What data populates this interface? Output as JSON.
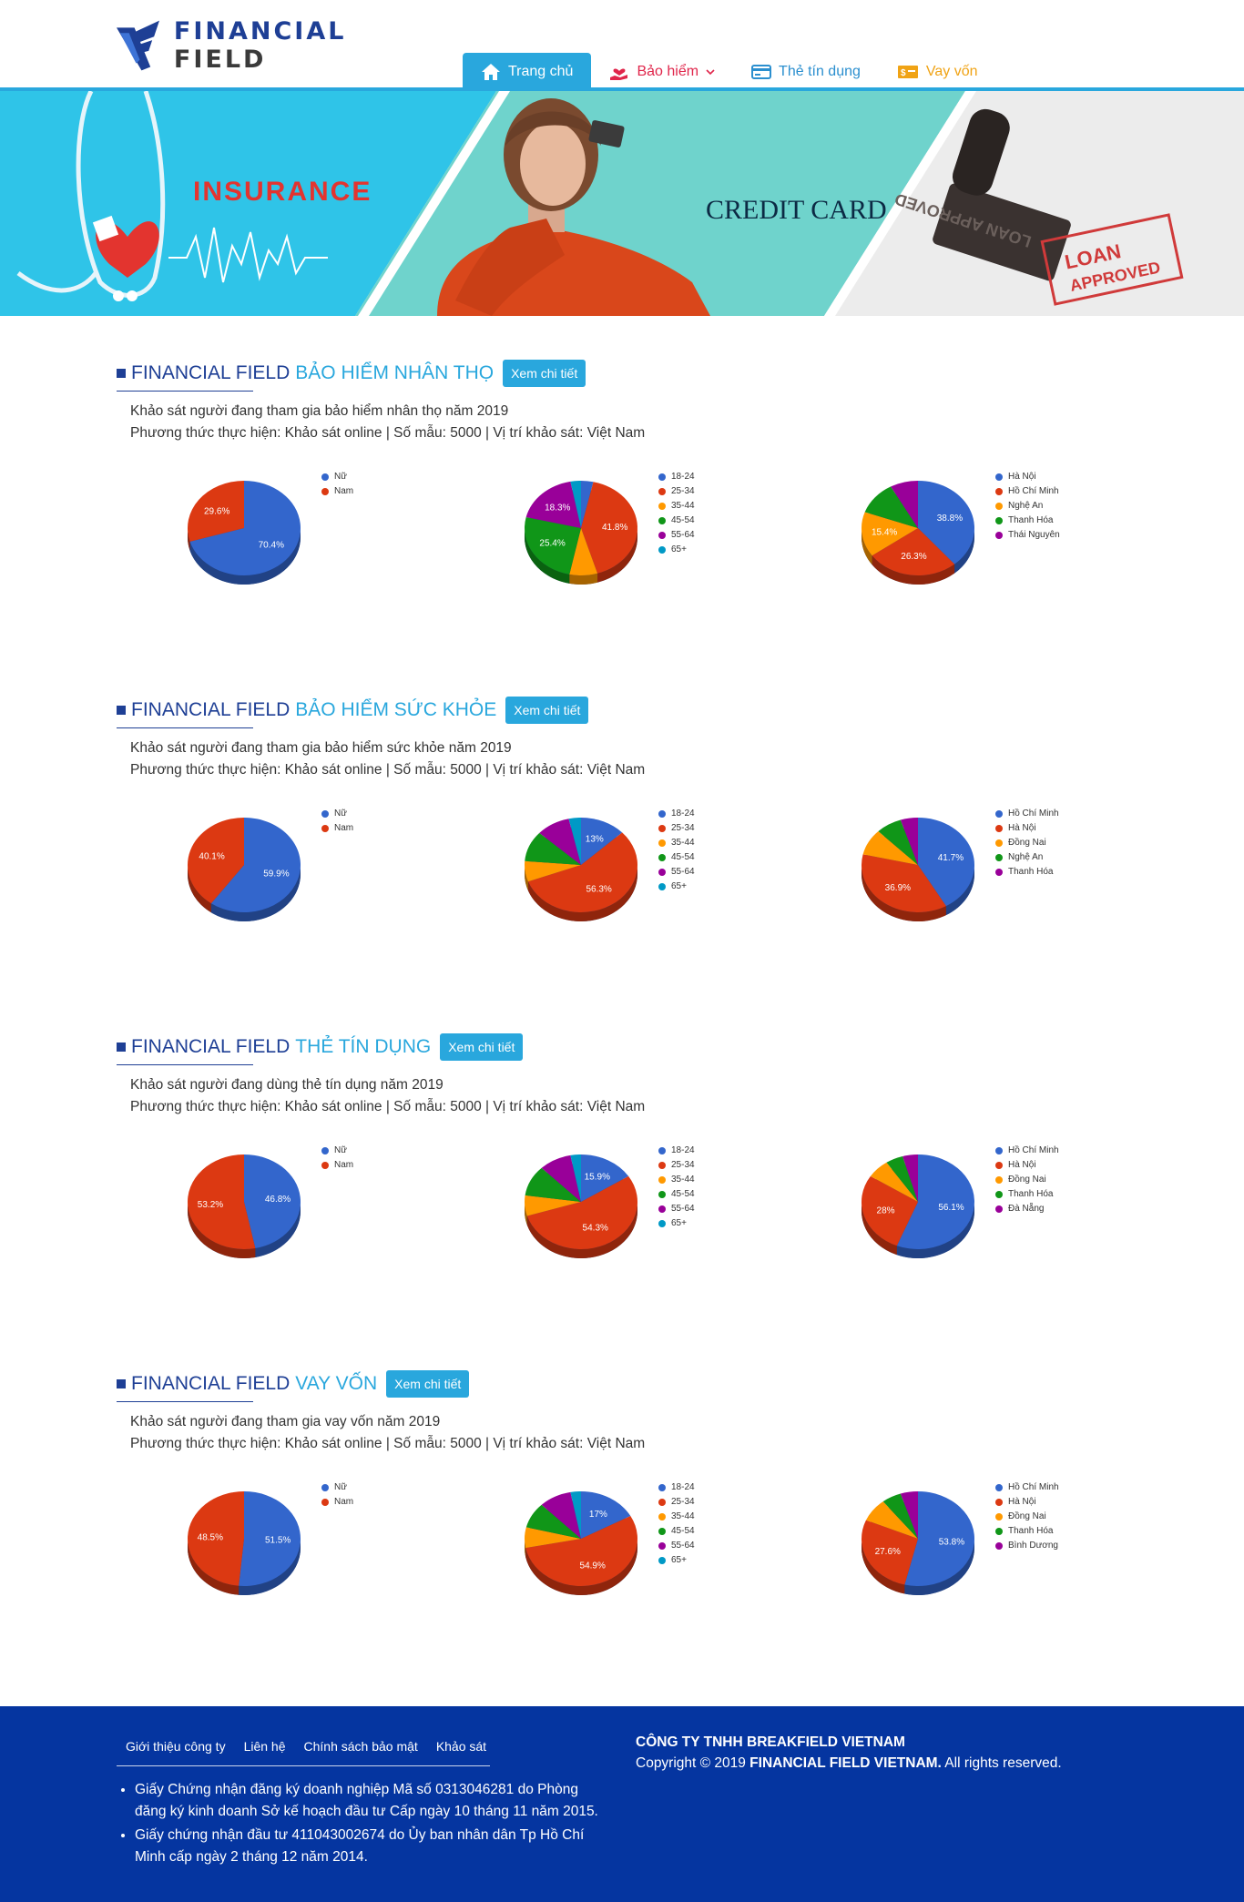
{
  "header": {
    "logo_word1": "FINANCIAL",
    "logo_word2": "FIELD",
    "nav": [
      {
        "label": "Trang chủ",
        "icon": "home-icon"
      },
      {
        "label": "Bảo hiểm",
        "icon": "insurance-hand-heart-icon"
      },
      {
        "label": "Thẻ tín dụng",
        "icon": "credit-card-icon"
      },
      {
        "label": "Vay vốn",
        "icon": "money-bill-icon"
      }
    ]
  },
  "banner": {
    "insurance_text": "INSURANCE",
    "credit_text": "CREDIT CARD",
    "stamp_line1": "LOAN",
    "stamp_line2": "APPROVED",
    "stamp_mirror": "LOAN APPROVED"
  },
  "colors": {
    "brand_blue": "#1e3f95",
    "accent_cyan": "#29a7dd",
    "footer_bg": "#0535a0",
    "pie": [
      "#3366cc",
      "#dc3912",
      "#ff9900",
      "#109618",
      "#990099",
      "#0099c6"
    ]
  },
  "sections": [
    {
      "brand": "FINANCIAL FIELD",
      "title": "BẢO HIỂM NHÂN THỌ",
      "button": "Xem chi tiết",
      "desc1": "Khảo sát người đang tham gia bảo hiểm nhân thọ năm 2019",
      "desc2": "Phương thức thực hiện: Khảo sát online | Số mẫu: 5000 | Vị trí khảo sát: Việt Nam",
      "charts": [
        {
          "type": "pie",
          "labels": [
            "Nữ",
            "Nam"
          ],
          "values": [
            70.4,
            29.6
          ],
          "data_labels": [
            "70.4%",
            "29.6%"
          ]
        },
        {
          "type": "pie",
          "labels": [
            "18-24",
            "25-34",
            "35-44",
            "45-54",
            "55-64",
            "65+"
          ],
          "values": [
            3.5,
            41.8,
            8.0,
            25.4,
            18.3,
            3.0
          ],
          "data_labels": [
            "",
            "41.8%",
            "",
            "25.4%",
            "18.3%",
            ""
          ]
        },
        {
          "type": "pie",
          "labels": [
            "Hà Nội",
            "Hồ Chí Minh",
            "Nghệ An",
            "Thanh Hóa",
            "Thái Nguyên"
          ],
          "values": [
            38.8,
            26.3,
            15.4,
            11.5,
            8.0
          ],
          "data_labels": [
            "38.8%",
            "26.3%",
            "15.4%",
            "",
            ""
          ]
        }
      ]
    },
    {
      "brand": "FINANCIAL FIELD",
      "title": "BẢO HIỂM SỨC KHỎE",
      "button": "Xem chi tiết",
      "desc1": "Khảo sát người đang tham gia bảo hiểm sức khỏe năm 2019",
      "desc2": "Phương thức thực hiện: Khảo sát online | Số mẫu: 5000 | Vị trí khảo sát: Việt Nam",
      "charts": [
        {
          "type": "pie",
          "labels": [
            "Nữ",
            "Nam"
          ],
          "values": [
            59.9,
            40.1
          ],
          "data_labels": [
            "59.9%",
            "40.1%"
          ]
        },
        {
          "type": "pie",
          "labels": [
            "18-24",
            "25-34",
            "35-44",
            "45-54",
            "55-64",
            "65+"
          ],
          "values": [
            13,
            56.3,
            7.0,
            10.5,
            9.7,
            3.5
          ],
          "data_labels": [
            "13%",
            "56.3%",
            "",
            "",
            "",
            ""
          ]
        },
        {
          "type": "pie",
          "labels": [
            "Hồ Chí Minh",
            "Hà Nội",
            "Đồng Nai",
            "Nghệ An",
            "Thanh Hóa"
          ],
          "values": [
            41.7,
            36.9,
            9.0,
            7.4,
            5.0
          ],
          "data_labels": [
            "41.7%",
            "36.9%",
            "",
            "",
            ""
          ]
        }
      ]
    },
    {
      "brand": "FINANCIAL FIELD",
      "title": "THẺ TÍN DỤNG",
      "button": "Xem chi tiết",
      "desc1": "Khảo sát người đang dùng thẻ tín dụng năm 2019",
      "desc2": "Phương thức thực hiện: Khảo sát online | Số mẫu: 5000 | Vị trí khảo sát: Việt Nam",
      "charts": [
        {
          "type": "pie",
          "labels": [
            "Nữ",
            "Nam"
          ],
          "values": [
            46.8,
            53.2
          ],
          "data_labels": [
            "46.8%",
            "53.2%"
          ]
        },
        {
          "type": "pie",
          "labels": [
            "18-24",
            "25-34",
            "35-44",
            "45-54",
            "55-64",
            "65+"
          ],
          "values": [
            15.9,
            54.3,
            7.0,
            10.5,
            9.3,
            3.0
          ],
          "data_labels": [
            "15.9%",
            "54.3%",
            "",
            "",
            "",
            ""
          ]
        },
        {
          "type": "pie",
          "labels": [
            "Hồ Chí Minh",
            "Hà Nội",
            "Đồng Nai",
            "Thanh Hóa",
            "Đà Nẵng"
          ],
          "values": [
            56.1,
            28,
            6.5,
            5.0,
            4.4
          ],
          "data_labels": [
            "56.1%",
            "28%",
            "",
            "",
            ""
          ]
        }
      ]
    },
    {
      "brand": "FINANCIAL FIELD",
      "title": "VAY VỐN",
      "button": "Xem chi tiết",
      "desc1": "Khảo sát người đang tham gia vay vốn năm 2019",
      "desc2": "Phương thức thực hiện: Khảo sát online | Số mẫu: 5000 | Vị trí khảo sát: Việt Nam",
      "charts": [
        {
          "type": "pie",
          "labels": [
            "Nữ",
            "Nam"
          ],
          "values": [
            51.5,
            48.5
          ],
          "data_labels": [
            "51.5%",
            "48.5%"
          ]
        },
        {
          "type": "pie",
          "labels": [
            "18-24",
            "25-34",
            "35-44",
            "45-54",
            "55-64",
            "65+"
          ],
          "values": [
            17,
            54.9,
            7.0,
            8.8,
            9.3,
            3.0
          ],
          "data_labels": [
            "17%",
            "54.9%",
            "",
            "",
            "",
            ""
          ]
        },
        {
          "type": "pie",
          "labels": [
            "Hồ Chí Minh",
            "Hà Nội",
            "Đồng Nai",
            "Thanh Hóa",
            "Bình Dương"
          ],
          "values": [
            53.8,
            27.6,
            8.0,
            5.6,
            5.0
          ],
          "data_labels": [
            "53.8%",
            "27.6%",
            "",
            "",
            ""
          ]
        }
      ]
    }
  ],
  "footer": {
    "links": [
      "Giới thiệu công ty",
      "Liên hệ",
      "Chính sách bảo mật",
      "Khảo sát"
    ],
    "items": [
      "Giấy Chứng nhận đăng ký doanh nghiệp Mã số 0313046281 do Phòng đăng ký kinh doanh Sở kế hoạch đầu tư Cấp ngày 10 tháng 11 năm 2015.",
      "Giấy chứng nhận đầu tư 411043002674 do Ủy ban nhân dân Tp Hồ Chí Minh cấp ngày 2 tháng 12 năm 2014."
    ],
    "company": "CÔNG TY TNHH BREAKFIELD VIETNAM",
    "copyright_prefix": "Copyright © 2019 ",
    "copyright_brand": "FINANCIAL FIELD VIETNAM.",
    "copyright_suffix": " All rights reserved."
  }
}
